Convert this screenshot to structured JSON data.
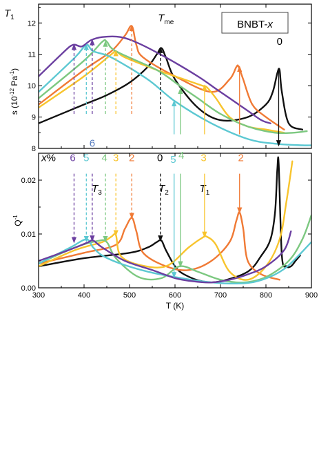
{
  "chart_data": [
    {
      "type": "line",
      "panel": "top",
      "panel_label": "T",
      "panel_label_sub": "1",
      "legend_box": "BNBT-x",
      "ylabel": "s (10",
      "ylabel_exp": "-12",
      "ylabel_tail": " Pa",
      "ylabel_tail_exp": "-1",
      "ylabel_close": ")",
      "ylim": [
        8,
        12.6
      ],
      "yticks": [
        8,
        9,
        10,
        11,
        12
      ],
      "xlim": [
        300,
        900
      ],
      "xticks": [
        300,
        400,
        500,
        600,
        700,
        800,
        900
      ],
      "annotations": [
        {
          "text": "T",
          "sub": "me",
          "x": 580,
          "y": 12.05,
          "italic": true,
          "color": "#000000"
        },
        {
          "text": "0",
          "x": 830,
          "y": 11.3,
          "color": "#000000"
        }
      ],
      "series": [
        {
          "name": "0",
          "color": "#111111",
          "x": [
            300,
            400,
            450,
            500,
            540,
            560,
            570,
            580,
            600,
            650,
            700,
            760,
            800,
            815,
            825,
            830,
            835,
            850,
            880
          ],
          "y": [
            8.8,
            9.4,
            9.7,
            10.1,
            10.6,
            11.0,
            11.2,
            10.9,
            10.2,
            9.3,
            8.9,
            9.0,
            9.4,
            9.8,
            10.4,
            10.5,
            9.8,
            8.8,
            8.6
          ]
        },
        {
          "name": "2",
          "color": "#f07a35",
          "x": [
            300,
            400,
            460,
            490,
            505,
            515,
            530,
            600,
            680,
            720,
            735,
            740,
            750,
            770,
            800,
            840
          ],
          "y": [
            9.4,
            10.5,
            11.1,
            11.6,
            11.9,
            11.3,
            10.9,
            10.3,
            9.8,
            10.2,
            10.6,
            10.6,
            10.2,
            9.4,
            9.0,
            8.6
          ]
        },
        {
          "name": "3",
          "color": "#f8c42d",
          "x": [
            300,
            400,
            460,
            470,
            490,
            560,
            620,
            660,
            670,
            690,
            720,
            760,
            800,
            840
          ],
          "y": [
            9.3,
            10.3,
            11.0,
            11.1,
            10.9,
            10.5,
            10.2,
            10.0,
            9.95,
            9.6,
            9.0,
            8.7,
            8.6,
            8.5
          ]
        },
        {
          "name": "4",
          "color": "#7cc880",
          "x": [
            300,
            400,
            440,
            450,
            470,
            560,
            610,
            650,
            700,
            760,
            820,
            860,
            890
          ],
          "y": [
            9.6,
            10.8,
            11.4,
            11.4,
            11.1,
            10.5,
            10.0,
            9.6,
            9.1,
            8.7,
            8.5,
            8.5,
            8.55
          ]
        },
        {
          "name": "5",
          "color": "#5cc8d2",
          "x": [
            300,
            380,
            405,
            420,
            460,
            540,
            600,
            680,
            760,
            820,
            880,
            900
          ],
          "y": [
            9.8,
            10.9,
            11.3,
            11.1,
            10.9,
            10.2,
            9.5,
            8.8,
            8.3,
            8.15,
            8.1,
            8.1
          ]
        },
        {
          "name": "6",
          "color": "#6b3fa0",
          "x": [
            300,
            350,
            375,
            395,
            415,
            440,
            480,
            520,
            580,
            650,
            690,
            720,
            760,
            790,
            810
          ],
          "y": [
            10.3,
            11.0,
            11.3,
            11.25,
            11.45,
            11.55,
            11.55,
            11.35,
            10.9,
            10.3,
            9.9,
            9.6,
            9.2,
            8.9,
            8.8
          ]
        }
      ]
    },
    {
      "type": "line",
      "panel": "bottom",
      "ylabel": "Q",
      "ylabel_exp": "-1",
      "xlabel": "T (K)",
      "ylim": [
        0,
        0.025
      ],
      "yticks": [
        0.0,
        0.01,
        0.02
      ],
      "ytick_labels": [
        "0.00",
        "0.01",
        "0.02"
      ],
      "xlim": [
        300,
        900
      ],
      "xticks": [
        300,
        400,
        500,
        600,
        700,
        800,
        900
      ],
      "annotations": [
        {
          "text": "x",
          "suffix": "%",
          "x": 322,
          "y": 0.0235,
          "italic": true,
          "color": "#000000"
        },
        {
          "text": "6",
          "x": 375,
          "y": 0.0235,
          "color": "#6b3fa0"
        },
        {
          "text": "5",
          "x": 405,
          "y": 0.0235,
          "color": "#5cc8d2"
        },
        {
          "text": "6",
          "x": 418,
          "y": 0.0262,
          "color": "#5a7fc0"
        },
        {
          "text": "4",
          "x": 445,
          "y": 0.0235,
          "color": "#7cc880"
        },
        {
          "text": "3",
          "x": 470,
          "y": 0.0235,
          "color": "#f8c42d"
        },
        {
          "text": "2",
          "x": 505,
          "y": 0.0235,
          "color": "#f07a35"
        },
        {
          "text": "0",
          "x": 567,
          "y": 0.0235,
          "color": "#000000"
        },
        {
          "text": "5",
          "x": 596,
          "y": 0.0232,
          "color": "#5cc8d2"
        },
        {
          "text": "4",
          "x": 614,
          "y": 0.024,
          "color": "#7cc880"
        },
        {
          "text": "3",
          "x": 663,
          "y": 0.0235,
          "color": "#f8c42d"
        },
        {
          "text": "2",
          "x": 745,
          "y": 0.0235,
          "color": "#f07a35"
        },
        {
          "text": "T",
          "sub": "3",
          "x": 428,
          "y": 0.0178,
          "italic": true,
          "color": "#000000"
        },
        {
          "text": "T",
          "sub": "2",
          "x": 575,
          "y": 0.0178,
          "italic": true,
          "color": "#000000"
        },
        {
          "text": "T",
          "sub": "1",
          "x": 665,
          "y": 0.0178,
          "italic": true,
          "color": "#000000"
        }
      ],
      "series": [
        {
          "name": "0",
          "color": "#111111",
          "x": [
            300,
            400,
            500,
            540,
            560,
            570,
            580,
            600,
            620,
            660,
            700,
            760,
            790,
            810,
            820,
            825,
            828,
            835,
            845,
            855,
            865,
            875
          ],
          "y": [
            0.004,
            0.0055,
            0.0065,
            0.0075,
            0.0085,
            0.0088,
            0.007,
            0.004,
            0.0025,
            0.0012,
            0.0012,
            0.003,
            0.006,
            0.009,
            0.014,
            0.022,
            0.023,
            0.006,
            0.004,
            0.004,
            0.005,
            0.006
          ]
        },
        {
          "name": "2",
          "color": "#f07a35",
          "x": [
            300,
            400,
            470,
            490,
            505,
            515,
            530,
            580,
            630,
            680,
            720,
            735,
            742,
            750,
            760,
            790,
            830
          ],
          "y": [
            0.0045,
            0.0065,
            0.008,
            0.011,
            0.013,
            0.0105,
            0.0065,
            0.004,
            0.0033,
            0.005,
            0.0085,
            0.0125,
            0.014,
            0.011,
            0.005,
            0.0025,
            0.0015
          ]
        },
        {
          "name": "3",
          "color": "#f8c42d",
          "x": [
            300,
            380,
            440,
            460,
            470,
            480,
            520,
            580,
            630,
            660,
            670,
            690,
            720,
            760,
            800,
            830,
            845,
            858
          ],
          "y": [
            0.004,
            0.007,
            0.0085,
            0.0095,
            0.0098,
            0.006,
            0.0043,
            0.004,
            0.0075,
            0.0093,
            0.0095,
            0.008,
            0.003,
            0.0015,
            0.004,
            0.009,
            0.016,
            0.0235
          ]
        },
        {
          "name": "4",
          "color": "#7cc880",
          "x": [
            300,
            380,
            430,
            450,
            470,
            520,
            570,
            610,
            650,
            700,
            750,
            800,
            850,
            880,
            900
          ],
          "y": [
            0.0045,
            0.0075,
            0.0087,
            0.0085,
            0.0055,
            0.002,
            0.0018,
            0.004,
            0.003,
            0.0015,
            0.001,
            0.002,
            0.005,
            0.009,
            0.0135
          ]
        },
        {
          "name": "5",
          "color": "#5cc8d2",
          "x": [
            300,
            370,
            405,
            420,
            440,
            480,
            540,
            600,
            660,
            720,
            780,
            840,
            900
          ],
          "y": [
            0.0045,
            0.0075,
            0.009,
            0.0075,
            0.006,
            0.0045,
            0.003,
            0.002,
            0.0012,
            0.0008,
            0.0012,
            0.0035,
            0.0085
          ]
        },
        {
          "name": "6",
          "color": "#6b3fa0",
          "x": [
            300,
            350,
            390,
            410,
            420,
            440,
            490,
            550,
            600,
            640,
            680,
            720,
            760,
            800,
            840,
            855
          ],
          "y": [
            0.005,
            0.0065,
            0.0078,
            0.0085,
            0.0088,
            0.0075,
            0.005,
            0.0033,
            0.0018,
            0.0012,
            0.001,
            0.0015,
            0.0025,
            0.004,
            0.007,
            0.0105
          ]
        }
      ],
      "vertical_arrows": [
        {
          "series": "6",
          "x": 378,
          "y_from": 0.0212,
          "y_to": 0.0085,
          "dashed": true
        },
        {
          "series": "6",
          "x": 418,
          "y_from": 0.0212,
          "y_to": 0.0088,
          "dashed": true
        },
        {
          "series": "5",
          "x": 405,
          "y_from": 0.0212,
          "y_to": 0.0087,
          "dashed": true
        },
        {
          "series": "4",
          "x": 447,
          "y_from": 0.0212,
          "y_to": 0.0087,
          "dashed": true
        },
        {
          "series": "3",
          "x": 470,
          "y_from": 0.0212,
          "y_to": 0.0098,
          "dashed": true
        },
        {
          "series": "2",
          "x": 505,
          "y_from": 0.0212,
          "y_to": 0.013,
          "dashed": true
        },
        {
          "series": "0",
          "x": 568,
          "y_from": 0.0212,
          "y_to": 0.0088,
          "dashed": true
        },
        {
          "series": "5",
          "x": 598,
          "y_from": 0.0212,
          "y_to": 0.002,
          "dashed": false
        },
        {
          "series": "4",
          "x": 612,
          "y_from": 0.0212,
          "y_to": 0.004,
          "dashed": false
        },
        {
          "series": "3",
          "x": 665,
          "y_from": 0.0212,
          "y_to": 0.0095,
          "dashed": false
        },
        {
          "series": "2",
          "x": 742,
          "y_from": 0.0212,
          "y_to": 0.014,
          "dashed": false
        }
      ],
      "top_arrows": [
        {
          "series": "6",
          "x": 378,
          "y_from": 9.1,
          "y_to": 11.3,
          "dashed": true
        },
        {
          "series": "6",
          "x": 418,
          "y_from": 9.1,
          "y_to": 11.45,
          "dashed": true
        },
        {
          "series": "5",
          "x": 405,
          "y_from": 9.1,
          "y_to": 11.3,
          "dashed": true
        },
        {
          "series": "4",
          "x": 447,
          "y_from": 9.1,
          "y_to": 11.4,
          "dashed": true
        },
        {
          "series": "3",
          "x": 470,
          "y_from": 9.1,
          "y_to": 11.1,
          "dashed": true
        },
        {
          "series": "2",
          "x": 505,
          "y_from": 9.1,
          "y_to": 11.9,
          "dashed": true
        },
        {
          "series": "0",
          "x": 568,
          "y_from": 9.1,
          "y_to": 11.2,
          "dashed": true
        },
        {
          "series": "5",
          "x": 598,
          "y_from": 8.45,
          "y_to": 9.5,
          "dashed": false
        },
        {
          "series": "4",
          "x": 612,
          "y_from": 8.45,
          "y_to": 9.9,
          "dashed": false
        },
        {
          "series": "3",
          "x": 665,
          "y_from": 8.45,
          "y_to": 10.0,
          "dashed": false
        },
        {
          "series": "2",
          "x": 742,
          "y_from": 8.45,
          "y_to": 10.6,
          "dashed": false
        },
        {
          "series": "0",
          "x": 828,
          "y_from": 10.5,
          "y_to": 8.1,
          "dashed": false
        }
      ]
    }
  ]
}
